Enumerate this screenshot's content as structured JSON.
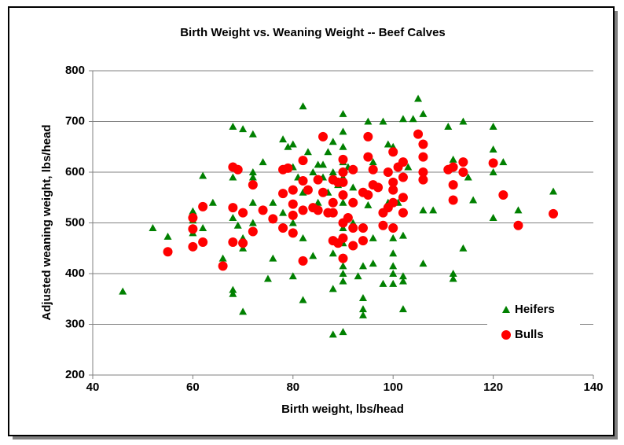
{
  "chart_data": {
    "type": "scatter",
    "title": "Birth Weight vs. Weaning Weight -- Beef Calves",
    "xlabel": "Birth weight, lbs/head",
    "ylabel": "Adjusted weaning weight, lbs/head",
    "xlim": [
      40,
      140
    ],
    "xticks": [
      40,
      60,
      80,
      100,
      120,
      140
    ],
    "ylim": [
      200,
      800
    ],
    "yticks": [
      200,
      300,
      400,
      500,
      600,
      700,
      800
    ],
    "grid": true,
    "legend": "lower right",
    "series": [
      {
        "name": "Heifers",
        "color": "#008000",
        "marker": "triangle",
        "x": [
          46,
          52,
          55,
          60,
          60,
          60,
          62,
          62,
          64,
          66,
          68,
          68,
          68,
          68,
          68,
          69,
          70,
          70,
          70,
          70,
          72,
          72,
          72,
          72,
          72,
          74,
          75,
          76,
          76,
          78,
          78,
          79,
          80,
          80,
          80,
          80,
          81,
          82,
          82,
          82,
          82,
          83,
          84,
          84,
          85,
          85,
          86,
          86,
          87,
          87,
          88,
          88,
          88,
          88,
          88,
          89,
          90,
          90,
          90,
          90,
          90,
          90,
          90,
          90,
          90,
          90,
          90,
          90,
          91,
          92,
          92,
          93,
          94,
          94,
          94,
          94,
          95,
          95,
          96,
          96,
          96,
          97,
          98,
          98,
          99,
          99,
          100,
          100,
          100,
          100,
          100,
          100,
          100,
          101,
          102,
          102,
          102,
          102,
          102,
          103,
          104,
          105,
          106,
          106,
          106,
          108,
          111,
          112,
          112,
          112,
          114,
          114,
          115,
          116,
          120,
          120,
          120,
          120,
          122,
          125,
          132
        ],
        "values": [
          365,
          490,
          473,
          523,
          505,
          480,
          593,
          490,
          540,
          430,
          690,
          368,
          360,
          590,
          510,
          495,
          685,
          470,
          450,
          325,
          675,
          600,
          590,
          540,
          500,
          620,
          390,
          430,
          540,
          665,
          520,
          650,
          655,
          610,
          395,
          500,
          590,
          730,
          560,
          470,
          348,
          640,
          600,
          435,
          615,
          540,
          590,
          615,
          640,
          560,
          280,
          370,
          440,
          660,
          600,
          575,
          715,
          680,
          650,
          620,
          590,
          540,
          490,
          460,
          415,
          400,
          385,
          285,
          610,
          570,
          500,
          395,
          330,
          318,
          352,
          415,
          700,
          535,
          620,
          470,
          420,
          570,
          700,
          380,
          655,
          540,
          640,
          470,
          440,
          380,
          400,
          415,
          650,
          540,
          705,
          395,
          385,
          330,
          475,
          610,
          705,
          745,
          715,
          525,
          420,
          525,
          690,
          400,
          390,
          625,
          700,
          450,
          590,
          545,
          690,
          645,
          600,
          510,
          620,
          525,
          562
        ]
      },
      {
        "name": "Bulls",
        "color": "#ff0000",
        "marker": "circle",
        "x": [
          55,
          60,
          60,
          60,
          62,
          62,
          66,
          68,
          68,
          68,
          69,
          70,
          70,
          72,
          72,
          74,
          76,
          78,
          78,
          78,
          79,
          80,
          80,
          80,
          80,
          82,
          82,
          82,
          82,
          83,
          84,
          85,
          85,
          86,
          86,
          87,
          88,
          88,
          88,
          88,
          89,
          89,
          90,
          90,
          90,
          90,
          90,
          90,
          90,
          91,
          92,
          92,
          92,
          92,
          94,
          94,
          94,
          95,
          95,
          95,
          96,
          96,
          97,
          98,
          98,
          99,
          99,
          100,
          100,
          100,
          100,
          100,
          101,
          102,
          102,
          102,
          102,
          105,
          106,
          106,
          106,
          106,
          111,
          112,
          112,
          112,
          114,
          114,
          120,
          122,
          125,
          132
        ],
        "values": [
          443,
          510,
          488,
          453,
          532,
          462,
          415,
          610,
          530,
          462,
          605,
          520,
          460,
          575,
          483,
          525,
          508,
          605,
          558,
          490,
          608,
          565,
          537,
          515,
          480,
          623,
          583,
          525,
          425,
          565,
          530,
          585,
          525,
          670,
          560,
          520,
          585,
          540,
          520,
          465,
          580,
          460,
          625,
          600,
          580,
          555,
          500,
          470,
          430,
          510,
          605,
          540,
          490,
          455,
          560,
          465,
          490,
          670,
          630,
          555,
          605,
          575,
          570,
          520,
          495,
          600,
          530,
          640,
          580,
          565,
          540,
          490,
          610,
          620,
          590,
          550,
          520,
          675,
          655,
          630,
          600,
          585,
          605,
          610,
          575,
          545,
          620,
          600,
          618,
          555,
          495,
          518
        ]
      }
    ]
  }
}
